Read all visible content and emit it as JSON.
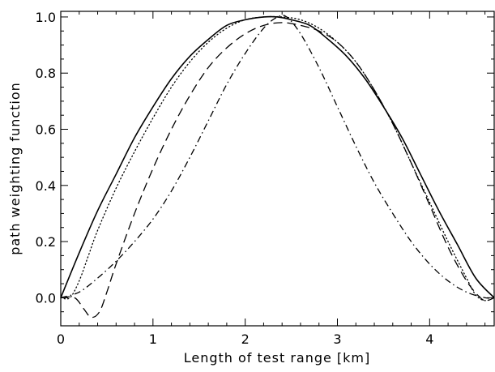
{
  "chart_data": {
    "type": "line",
    "title": "",
    "xlabel": "Length of test range [km]",
    "ylabel": "path weighting function",
    "xlim": [
      0,
      4.7
    ],
    "ylim": [
      -0.1,
      1.02
    ],
    "x_ticks": [
      0,
      1,
      2,
      3,
      4
    ],
    "x_tick_labels": [
      "0",
      "1",
      "2",
      "3",
      "4"
    ],
    "y_ticks": [
      0.0,
      0.2,
      0.4,
      0.6,
      0.8,
      1.0
    ],
    "y_tick_labels": [
      "0.0",
      "0.2",
      "0.4",
      "0.6",
      "0.8",
      "1.0"
    ],
    "grid": false,
    "legend": false,
    "series": [
      {
        "style": "solid",
        "x": [
          0,
          0.2,
          0.4,
          0.6,
          0.8,
          1.0,
          1.2,
          1.4,
          1.6,
          1.8,
          2.0,
          2.2,
          2.35,
          2.5,
          2.7,
          2.9,
          3.1,
          3.3,
          3.5,
          3.7,
          3.9,
          4.1,
          4.3,
          4.5,
          4.7
        ],
        "y": [
          0.0,
          0.16,
          0.31,
          0.44,
          0.57,
          0.68,
          0.78,
          0.86,
          0.92,
          0.97,
          0.99,
          1.0,
          1.0,
          0.99,
          0.97,
          0.92,
          0.86,
          0.78,
          0.68,
          0.57,
          0.44,
          0.31,
          0.19,
          0.07,
          0.0
        ]
      },
      {
        "style": "dotted",
        "x": [
          0,
          0.1,
          0.2,
          0.3,
          0.4,
          0.6,
          0.8,
          1.0,
          1.2,
          1.4,
          1.6,
          1.8,
          2.0,
          2.2,
          2.4,
          2.6,
          2.8,
          3.0,
          3.2,
          3.4,
          3.6,
          3.8,
          4.0,
          4.2,
          4.4,
          4.5,
          4.6,
          4.7
        ],
        "y": [
          0.0,
          0.0,
          0.06,
          0.15,
          0.24,
          0.39,
          0.52,
          0.64,
          0.75,
          0.84,
          0.91,
          0.96,
          0.99,
          1.0,
          1.0,
          0.99,
          0.96,
          0.91,
          0.84,
          0.74,
          0.62,
          0.48,
          0.34,
          0.2,
          0.07,
          0.01,
          -0.01,
          0.0
        ]
      },
      {
        "style": "dashed",
        "x": [
          0,
          0.15,
          0.25,
          0.33,
          0.42,
          0.5,
          0.6,
          0.8,
          1.0,
          1.2,
          1.4,
          1.6,
          1.8,
          2.0,
          2.2,
          2.4,
          2.6,
          2.8,
          3.0,
          3.2,
          3.4,
          3.6,
          3.8,
          4.0,
          4.2,
          4.4,
          4.55,
          4.62,
          4.7
        ],
        "y": [
          0.0,
          0.0,
          -0.04,
          -0.07,
          -0.05,
          0.02,
          0.12,
          0.3,
          0.46,
          0.6,
          0.72,
          0.82,
          0.89,
          0.94,
          0.97,
          0.98,
          0.97,
          0.95,
          0.91,
          0.84,
          0.74,
          0.62,
          0.48,
          0.33,
          0.18,
          0.06,
          0.0,
          -0.01,
          0.0
        ]
      },
      {
        "style": "dash-dot",
        "x": [
          0,
          0.2,
          0.4,
          0.6,
          0.8,
          1.0,
          1.2,
          1.4,
          1.6,
          1.8,
          2.0,
          2.2,
          2.35,
          2.45,
          2.6,
          2.8,
          3.0,
          3.2,
          3.4,
          3.6,
          3.8,
          4.0,
          4.2,
          4.4,
          4.6,
          4.7
        ],
        "y": [
          0.0,
          0.02,
          0.07,
          0.13,
          0.2,
          0.28,
          0.38,
          0.5,
          0.63,
          0.76,
          0.87,
          0.96,
          1.0,
          1.0,
          0.94,
          0.82,
          0.68,
          0.54,
          0.41,
          0.3,
          0.2,
          0.12,
          0.06,
          0.02,
          0.0,
          0.0
        ]
      }
    ]
  }
}
